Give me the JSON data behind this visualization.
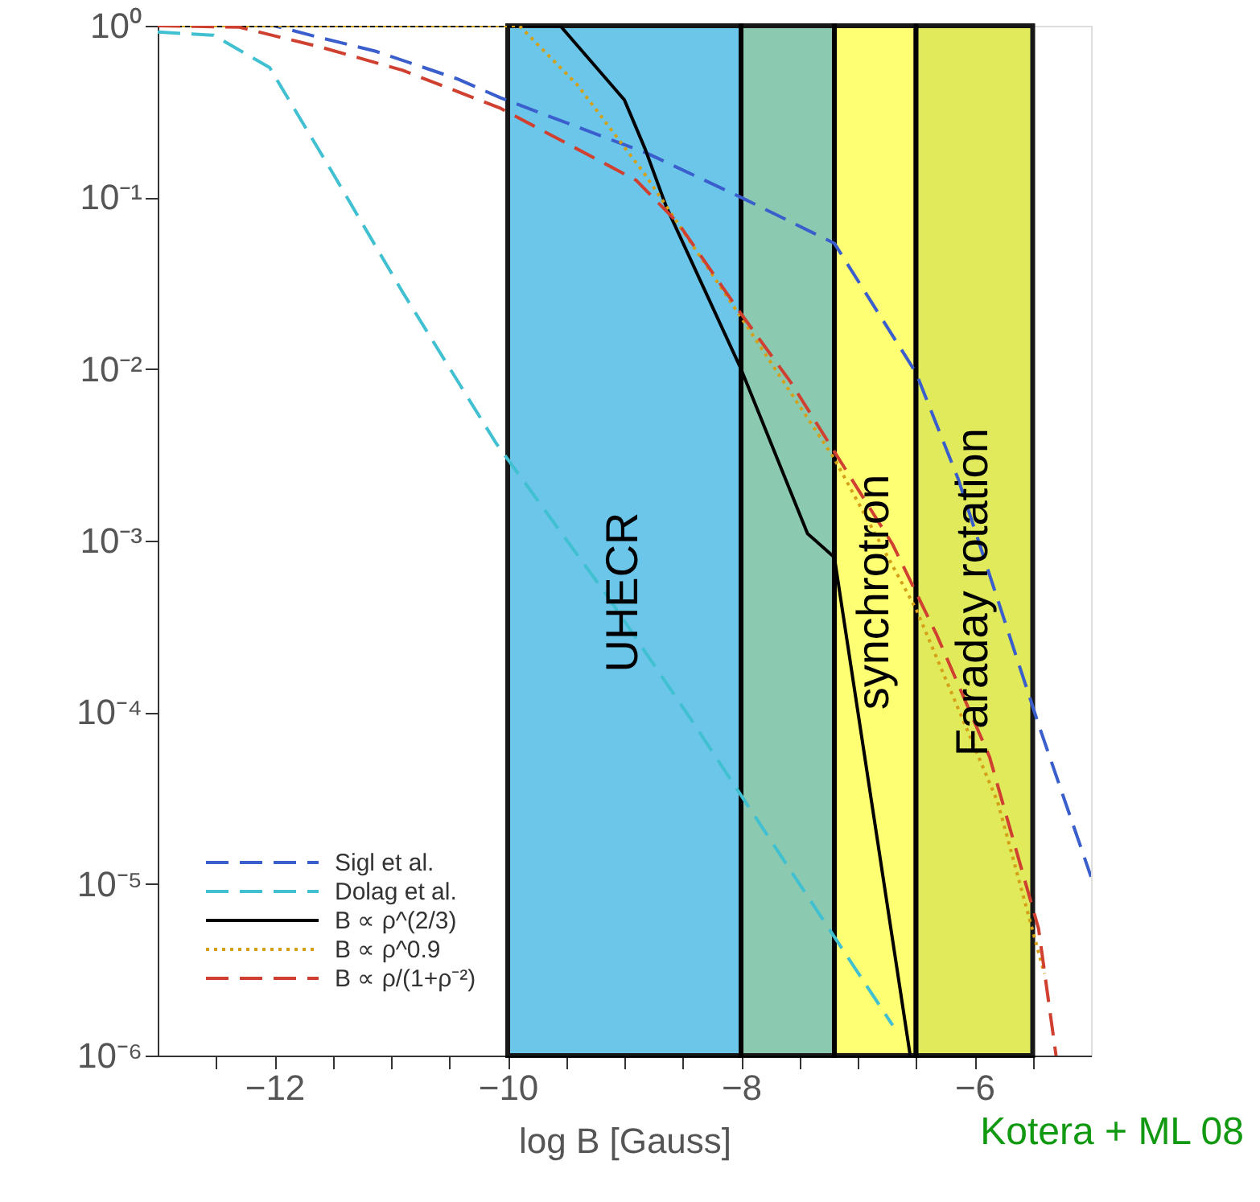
{
  "chart_data": {
    "type": "line",
    "xlabel": "log B [Gauss]",
    "annotations": [
      "Kotera + ML 08"
    ],
    "xlim": [
      -13,
      -5
    ],
    "ylim": [
      1e-06,
      1
    ],
    "log": "y",
    "grid": false,
    "legend": "bottom left",
    "xticks": [
      {
        "value": -12.5,
        "label": null
      },
      -12,
      {
        "value": -11.5,
        "label": null
      },
      {
        "value": -11,
        "label": null
      },
      {
        "value": -10.5,
        "label": null
      },
      -10,
      {
        "value": -9.5,
        "label": null
      },
      {
        "value": -9,
        "label": null
      },
      {
        "value": -8.5,
        "label": null
      },
      -8,
      {
        "value": -7.5,
        "label": null
      },
      {
        "value": -7,
        "label": null
      },
      {
        "value": -6.5,
        "label": null
      },
      -6,
      {
        "value": -5.5,
        "label": null
      }
    ],
    "yticks": [
      {
        "value": 1e-06,
        "label": "10⁻⁶"
      },
      {
        "value": 1e-05,
        "label": "10⁻⁵"
      },
      {
        "value": 0.0001,
        "label": "10⁻⁴"
      },
      {
        "value": 0.001,
        "label": "10⁻³"
      },
      {
        "value": 0.01,
        "label": "10⁻²"
      },
      {
        "value": 0.1,
        "label": "10⁻¹"
      },
      {
        "value": 1,
        "label": "10⁰"
      }
    ],
    "bands": [
      {
        "axis": "x",
        "from": -10,
        "to": -8,
        "label": "UHECR",
        "color": "#5bc0e8"
      },
      {
        "axis": "x",
        "from": -8,
        "to": -7.2,
        "label": null,
        "color": "#7fc4a8"
      },
      {
        "axis": "x",
        "from": -7.2,
        "to": -6.5,
        "label": "synchrotron",
        "color": "#ffff66"
      },
      {
        "axis": "x",
        "from": -6.5,
        "to": -5.5,
        "label": "Faraday rotation",
        "color": "#dde84a"
      }
    ],
    "series": [
      {
        "name": "Sigl et al.",
        "color": "#3a5fcd",
        "line_style": "dashed",
        "x": [
          -13,
          -12,
          -11.6,
          -11.13,
          -10.43,
          -10.06,
          -8.8,
          -8.0,
          -7.2,
          -6.5,
          -6.14,
          -5.45,
          -5.0
        ],
        "values": [
          1.0,
          1.0,
          0.85,
          0.71,
          0.49,
          0.38,
          0.18,
          0.1,
          0.054,
          0.0095,
          0.0023,
          8.5e-05,
          1.1e-05
        ]
      },
      {
        "name": "Dolag et al.",
        "color": "#40c0d0",
        "line_style": "dashed",
        "x": [
          -13,
          -12.52,
          -12.04,
          -11.49,
          -10.9,
          -10.1,
          -9.14,
          -8.4,
          -7.67,
          -6.7
        ],
        "values": [
          0.92,
          0.88,
          0.57,
          0.135,
          0.028,
          0.0037,
          0.00047,
          8.5e-05,
          1.5e-05,
          1.5e-06
        ]
      },
      {
        "name": "B ∝ ρ^(2/3)",
        "color": "#000000",
        "line_style": "solid",
        "x": [
          -13,
          -9.55,
          -9.0,
          -8.82,
          -8.64,
          -8.0,
          -7.43,
          -7.2,
          -6.55
        ],
        "values": [
          1.0,
          1.0,
          0.37,
          0.19,
          0.088,
          0.01,
          0.0011,
          0.0008,
          1e-06
        ]
      },
      {
        "name": "B ∝ ρ^0.9",
        "color": "#d4a017",
        "line_style": "dotted",
        "x": [
          -13,
          -9.9,
          -9.4,
          -8.82,
          -8.0,
          -7.2,
          -6.5,
          -5.8,
          -5.4
        ],
        "values": [
          1.0,
          1.0,
          0.45,
          0.135,
          0.02,
          0.003,
          0.0004,
          3e-05,
          3e-06
        ]
      },
      {
        "name": "B ∝ ρ/(1+ρ⁻²)",
        "color": "#d04030",
        "line_style": "dashed",
        "x": [
          -13,
          -12.3,
          -11.6,
          -10.9,
          -10.06,
          -8.9,
          -8.54,
          -8.0,
          -7.57,
          -7.2,
          -6.7,
          -6.32,
          -5.87,
          -5.45,
          -5.3
        ],
        "values": [
          1.0,
          0.98,
          0.75,
          0.55,
          0.33,
          0.126,
          0.071,
          0.021,
          0.0083,
          0.0033,
          0.00095,
          0.00028,
          5.5e-05,
          5.5e-06,
          1e-06
        ]
      }
    ]
  }
}
